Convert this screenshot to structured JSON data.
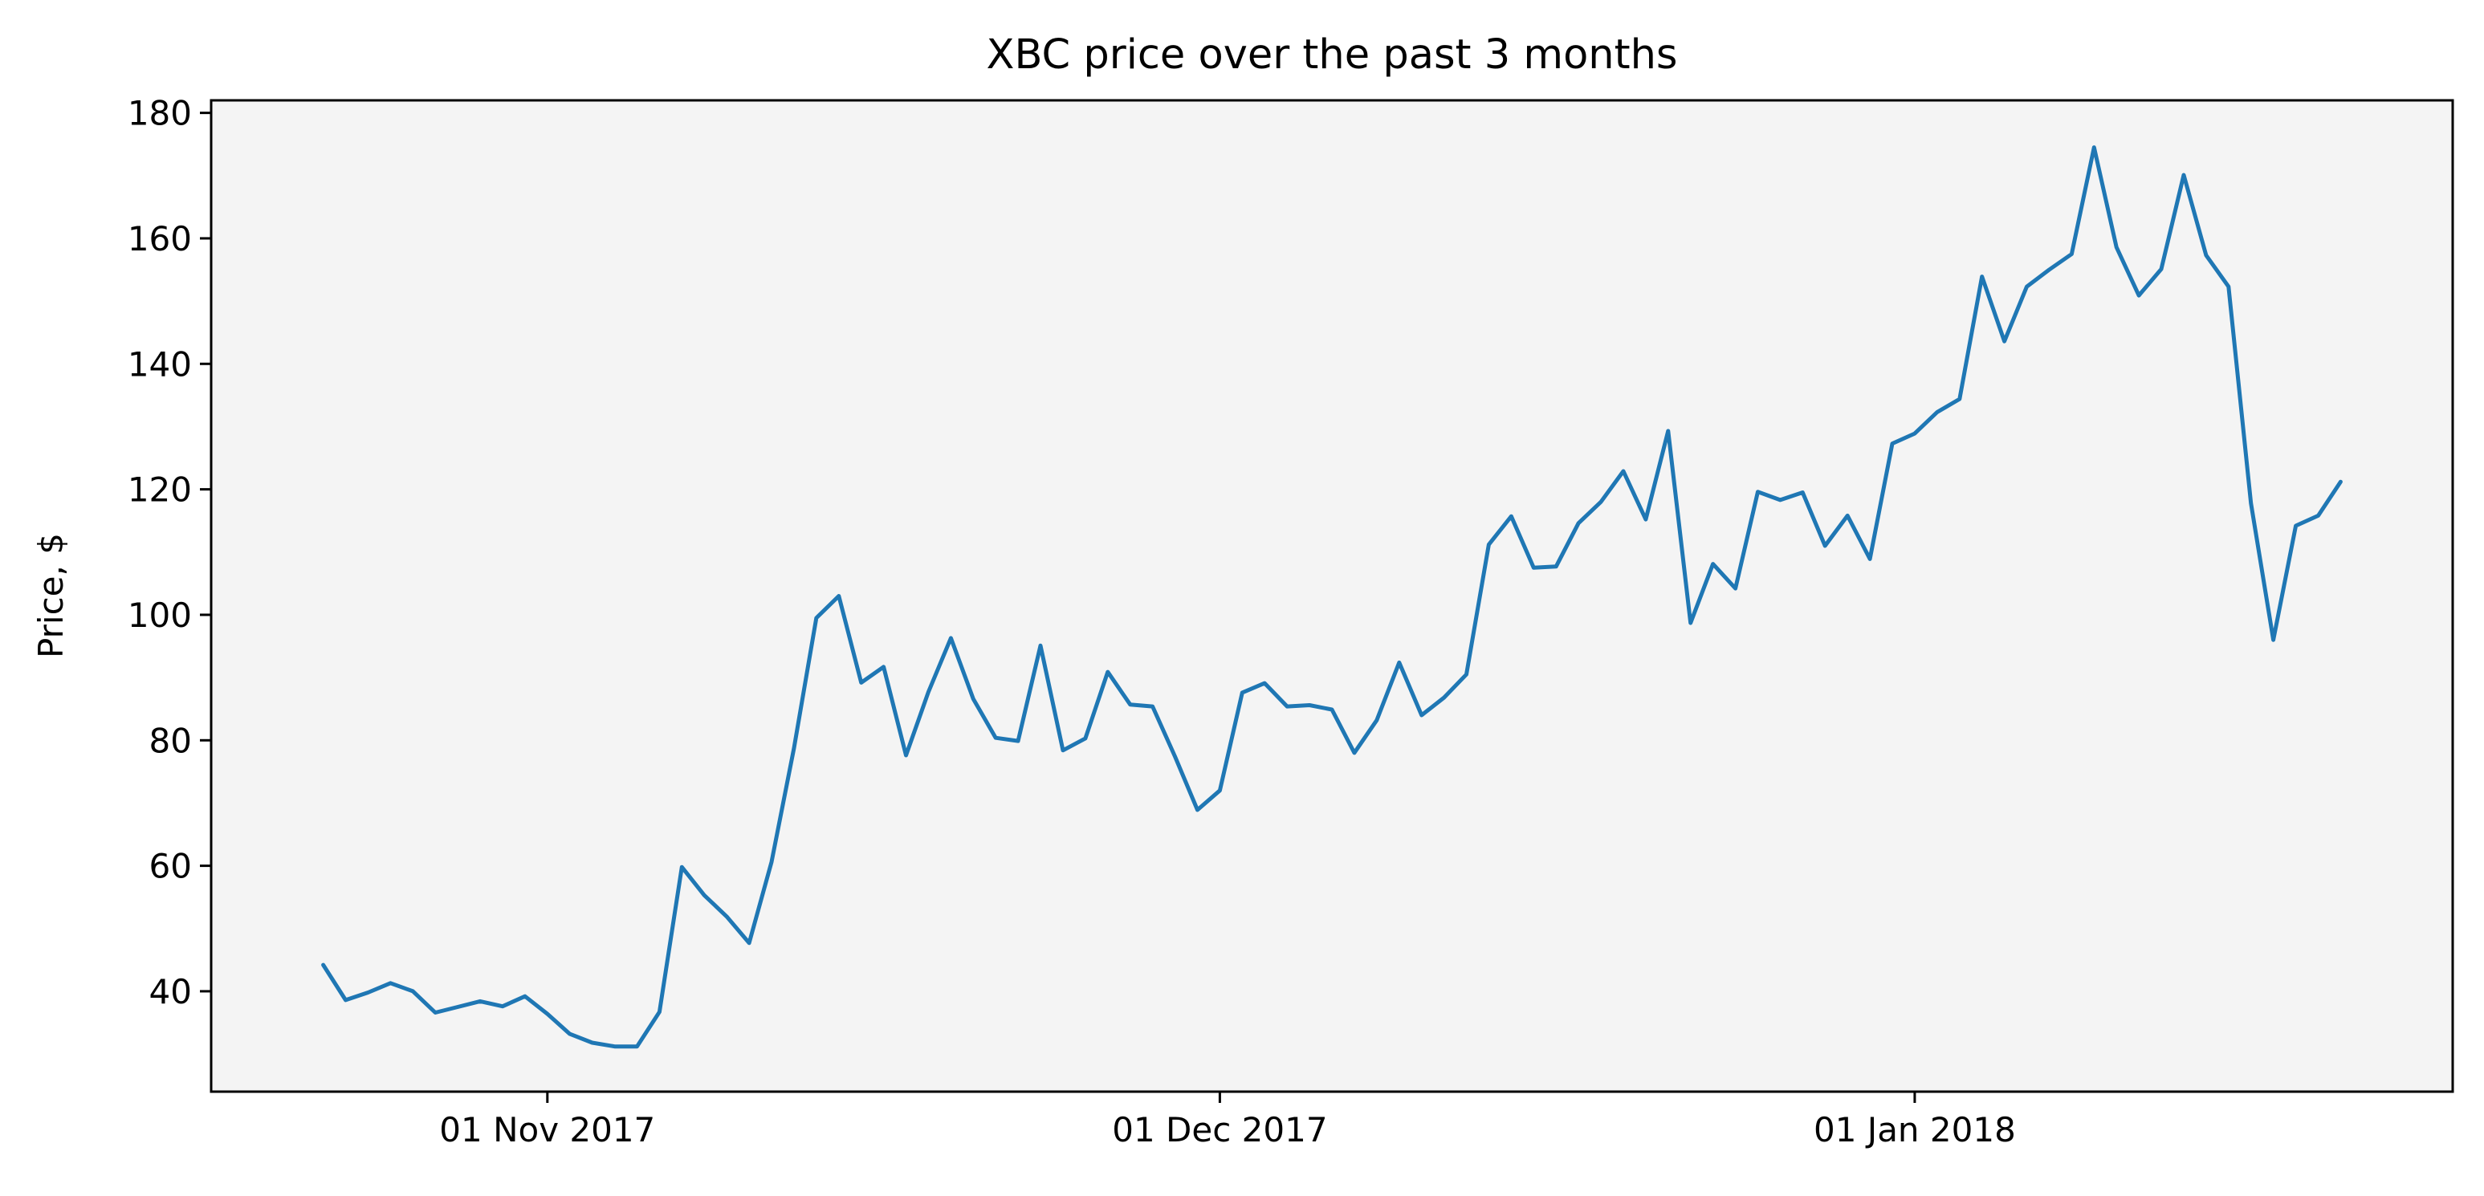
{
  "chart_data": {
    "type": "line",
    "title": "XBC price over the past 3 months",
    "xlabel": "",
    "ylabel": "Price, $",
    "x_type": "date",
    "x_start": "2017-10-22",
    "x_step_days": 1,
    "x_ticks": [
      {
        "date": "2017-11-01",
        "label": "01 Nov 2017"
      },
      {
        "date": "2017-12-01",
        "label": "01 Dec 2017"
      },
      {
        "date": "2018-01-01",
        "label": "01 Jan 2018"
      }
    ],
    "xlim": [
      "2017-10-17",
      "2018-01-25"
    ],
    "ylim": [
      24,
      182
    ],
    "y_ticks": [
      40,
      60,
      80,
      100,
      120,
      140,
      160,
      180
    ],
    "grid": false,
    "plot_background": "#f4f4f4",
    "line_color": "#1f77b4",
    "series": [
      {
        "values": [
          44.2,
          38.6,
          39.8,
          41.3,
          40.0,
          36.6,
          37.5,
          38.4,
          37.6,
          39.2,
          36.4,
          33.2,
          31.8,
          31.2,
          31.2,
          36.7,
          59.8,
          55.3,
          51.9,
          47.7,
          60.6,
          78.7,
          99.5,
          103.0,
          89.2,
          91.7,
          77.6,
          87.7,
          96.3,
          86.6,
          80.4,
          79.9,
          95.1,
          78.4,
          80.3,
          90.9,
          85.7,
          85.4,
          77.4,
          68.9,
          72.0,
          87.6,
          89.1,
          85.4,
          85.6,
          84.9,
          78.0,
          83.2,
          92.4,
          84.0,
          86.8,
          90.5,
          111.2,
          115.7,
          107.5,
          107.7,
          114.6,
          118.0,
          122.9,
          115.2,
          129.3,
          98.7,
          108.1,
          104.2,
          119.6,
          118.3,
          119.5,
          111.0,
          115.8,
          108.9,
          127.3,
          128.9,
          132.3,
          134.4,
          153.9,
          143.6,
          152.3,
          155.0,
          157.5,
          174.5,
          158.6,
          150.9,
          155.1,
          170.1,
          157.3,
          152.3,
          117.8,
          96.0,
          114.2,
          115.8,
          121.2
        ]
      }
    ]
  }
}
